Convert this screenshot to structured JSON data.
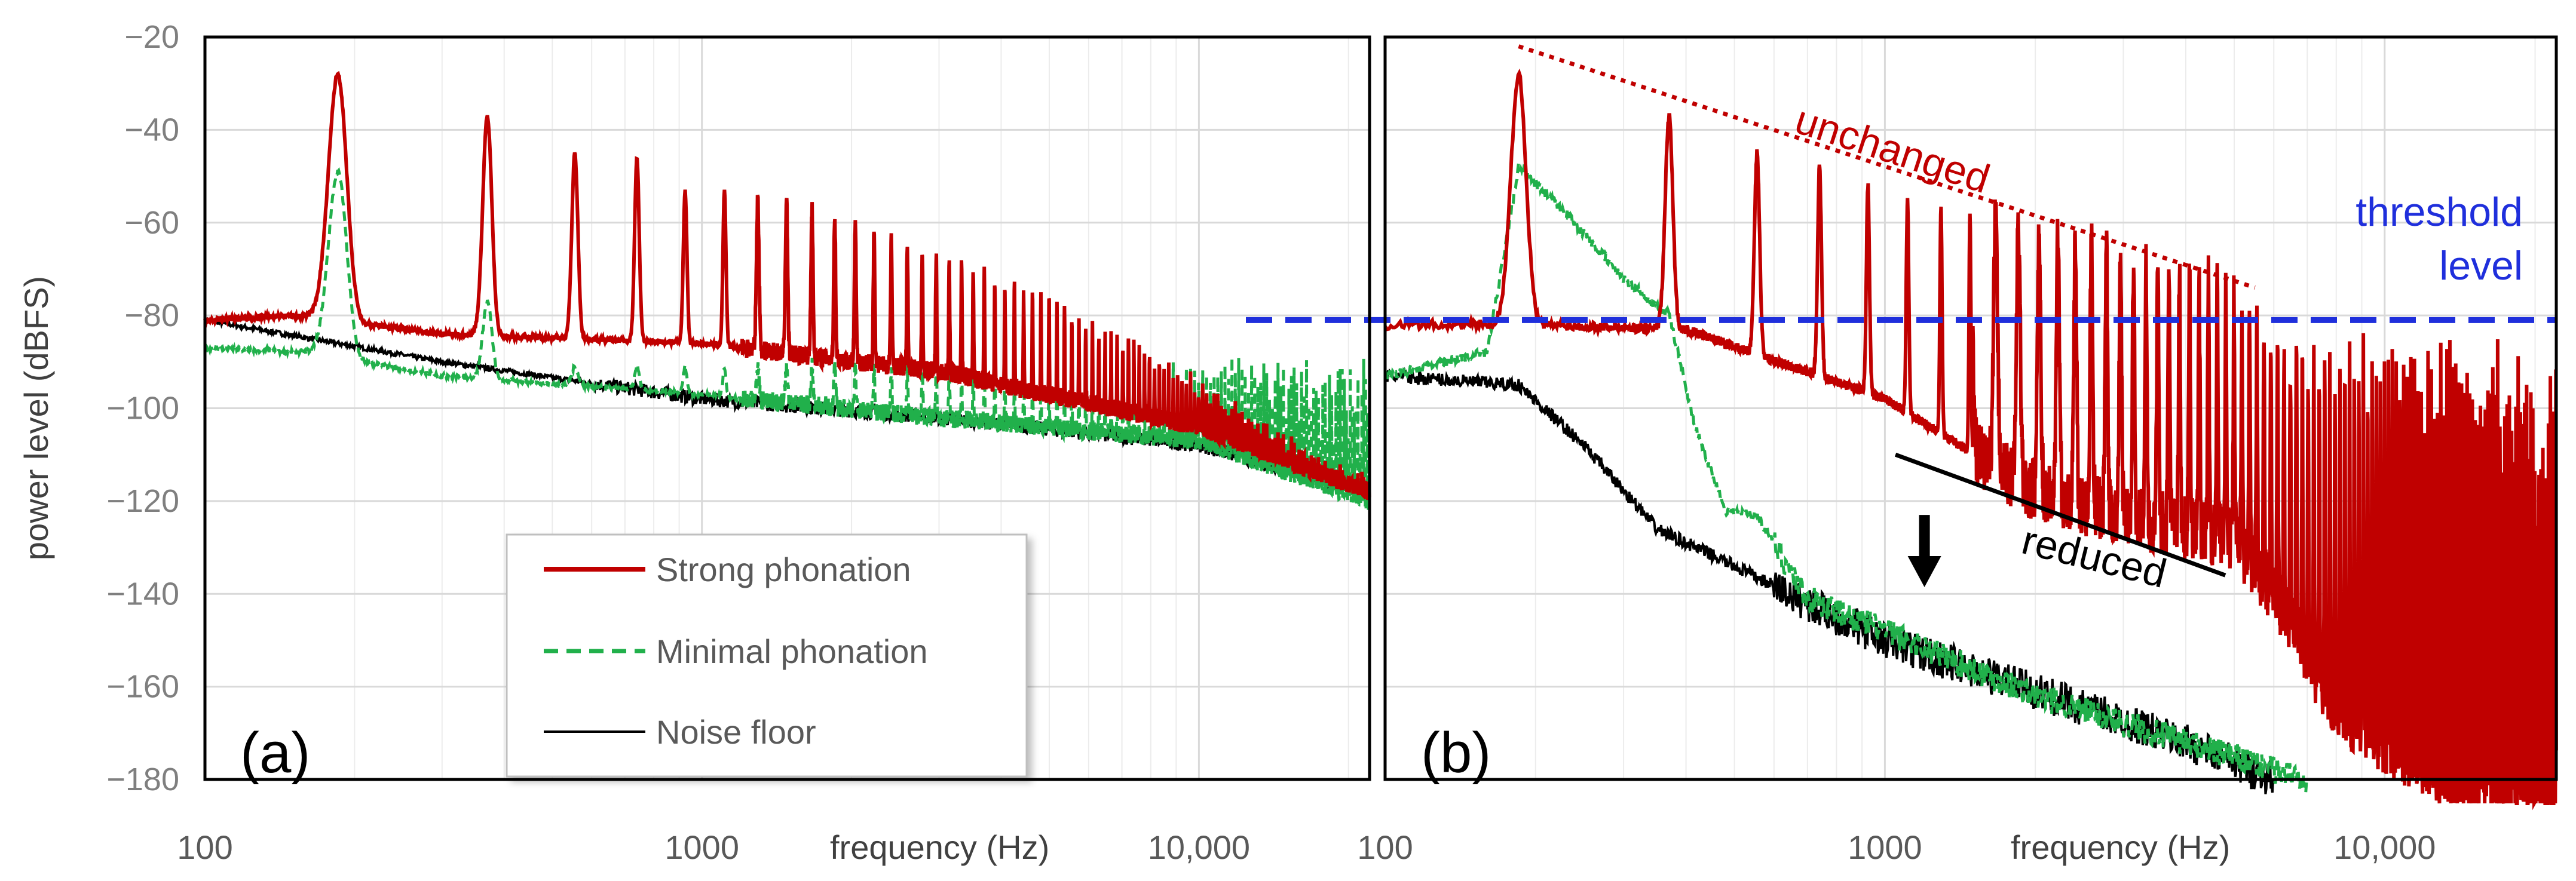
{
  "ylabel": "power level (dBFS)",
  "xlabel": "frequency (Hz)",
  "colors": {
    "strong": "#c00000",
    "minimal": "#21b04b",
    "noise": "#000000",
    "threshold": "#1f2fdc",
    "grid": "#d9d9d9",
    "minor_grid": "#ececec"
  },
  "legend": {
    "items": [
      {
        "label": "Strong phonation",
        "icon": "solid-red-line",
        "color": "#c00000"
      },
      {
        "label": "Minimal phonation",
        "icon": "dashed-green-line",
        "color": "#21b04b"
      },
      {
        "label": "Noise floor",
        "icon": "solid-black-line",
        "color": "#000000"
      }
    ]
  },
  "annotations": {
    "unchanged": "unchanged",
    "threshold_line1": "threshold",
    "threshold_line2": "level",
    "reduced": "reduced"
  },
  "chart_data": [
    {
      "type": "line",
      "panel": "(a)",
      "xscale": "log",
      "xlim": [
        100,
        22050
      ],
      "ylim": [
        -180,
        -20
      ],
      "yticks": [
        -20,
        -40,
        -60,
        -80,
        -100,
        -120,
        -140,
        -160,
        -180
      ],
      "ytick_labels": [
        "−20",
        "−40",
        "−60",
        "−80",
        "−100",
        "−120",
        "−140",
        "−160",
        "−180"
      ],
      "xticks": [
        100,
        1000,
        10000
      ],
      "xtick_labels": [
        "100",
        "1000",
        "10,000"
      ],
      "xlabel": "frequency (Hz)",
      "ylabel": "power level (dBFS)",
      "grid": true,
      "legend_position": "lower-center",
      "f0": 185,
      "series": [
        {
          "name": "Strong phonation",
          "style": "solid",
          "color": "#c00000",
          "peaks": [
            [
              185,
              -28
            ],
            [
              370,
              -37
            ],
            [
              555,
              -45
            ],
            [
              740,
              -46
            ],
            [
              925,
              -53
            ],
            [
              1110,
              -53
            ],
            [
              1295,
              -55
            ],
            [
              1480,
              -55
            ],
            [
              1850,
              -58
            ],
            [
              2500,
              -64
            ],
            [
              3500,
              -70
            ],
            [
              5000,
              -77
            ],
            [
              7000,
              -85
            ],
            [
              10000,
              -95
            ],
            [
              14000,
              -105
            ],
            [
              20000,
              -115
            ]
          ],
          "baseline": [
            [
              100,
              -81
            ],
            [
              150,
              -80
            ],
            [
              300,
              -84
            ],
            [
              1000,
              -86
            ],
            [
              3000,
              -92
            ],
            [
              10000,
              -104
            ],
            [
              22050,
              -118
            ]
          ]
        },
        {
          "name": "Minimal phonation",
          "style": "dashed",
          "color": "#21b04b",
          "peaks": [
            [
              185,
              -49
            ],
            [
              370,
              -77
            ],
            [
              555,
              -91
            ]
          ],
          "baseline": [
            [
              100,
              -87
            ],
            [
              160,
              -88
            ],
            [
              300,
              -93
            ],
            [
              1000,
              -97
            ],
            [
              3000,
              -102
            ],
            [
              10000,
              -107
            ],
            [
              22050,
              -120
            ]
          ]
        },
        {
          "name": "Noise floor",
          "style": "solid",
          "color": "#000000",
          "baseline": [
            [
              100,
              -81
            ],
            [
              300,
              -90
            ],
            [
              1000,
              -98
            ],
            [
              3000,
              -102
            ],
            [
              10000,
              -108
            ],
            [
              22050,
              -118
            ]
          ]
        }
      ]
    },
    {
      "type": "line",
      "panel": "(b)",
      "xscale": "log",
      "xlim": [
        100,
        22050
      ],
      "ylim": [
        -180,
        -20
      ],
      "xticks": [
        100,
        1000,
        10000
      ],
      "xtick_labels": [
        "100",
        "1000",
        "10,000"
      ],
      "xlabel": "frequency (Hz)",
      "grid": true,
      "threshold": -81,
      "unchanged_line": [
        [
          185,
          -22
        ],
        [
          5500,
          -74
        ]
      ],
      "reduced_line": [
        [
          1050,
          -110
        ],
        [
          4800,
          -136
        ]
      ],
      "arrow": {
        "x": 1200,
        "y_from": -123,
        "y_to": -137
      },
      "f0": 185,
      "series": [
        {
          "name": "Strong phonation",
          "style": "solid",
          "color": "#c00000",
          "peaks": [
            [
              185,
              -28
            ],
            [
              370,
              -37
            ],
            [
              555,
              -45
            ],
            [
              740,
              -48
            ],
            [
              925,
              -52
            ],
            [
              1110,
              -55
            ],
            [
              1480,
              -58
            ],
            [
              1850,
              -61
            ],
            [
              2500,
              -64
            ],
            [
              3500,
              -69
            ],
            [
              5000,
              -74
            ],
            [
              5500,
              -80
            ],
            [
              7000,
              -90
            ]
          ],
          "troughs": [
            [
              200,
              -82
            ],
            [
              400,
              -83
            ],
            [
              1000,
              -98
            ],
            [
              2000,
              -118
            ],
            [
              3000,
              -123
            ],
            [
              5000,
              -128
            ],
            [
              6000,
              -140
            ],
            [
              8000,
              -165
            ],
            [
              12000,
              -178
            ],
            [
              22050,
              -185
            ]
          ]
        },
        {
          "name": "Minimal phonation",
          "style": "dashed",
          "color": "#21b04b",
          "points": [
            [
              100,
              -93
            ],
            [
              160,
              -88
            ],
            [
              185,
              -48
            ],
            [
              230,
              -58
            ],
            [
              300,
              -72
            ],
            [
              370,
              -80
            ],
            [
              420,
              -105
            ],
            [
              480,
              -122
            ],
            [
              555,
              -123
            ],
            [
              700,
              -141
            ],
            [
              1000,
              -148
            ],
            [
              2000,
              -162
            ],
            [
              4000,
              -172
            ],
            [
              7000,
              -180
            ]
          ]
        },
        {
          "name": "Noise floor",
          "style": "solid",
          "color": "#000000",
          "points": [
            [
              100,
              -93
            ],
            [
              185,
              -95
            ],
            [
              250,
              -108
            ],
            [
              350,
              -126
            ],
            [
              500,
              -134
            ],
            [
              700,
              -142
            ],
            [
              1000,
              -150
            ],
            [
              2000,
              -161
            ],
            [
              4000,
              -172
            ],
            [
              6000,
              -180
            ]
          ]
        }
      ]
    }
  ]
}
